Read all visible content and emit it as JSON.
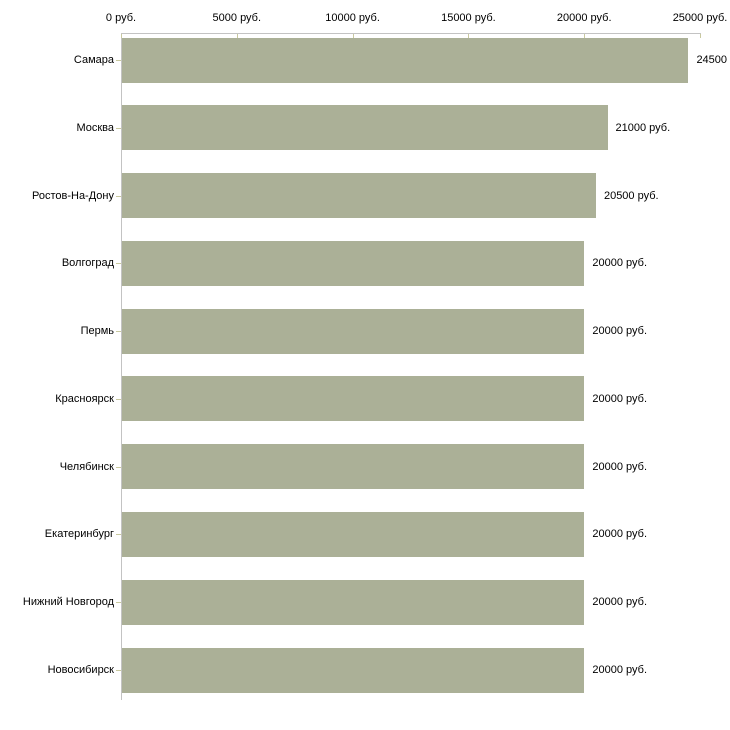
{
  "chart_data": {
    "type": "bar",
    "orientation": "horizontal",
    "title": "",
    "xlabel": "",
    "ylabel": "",
    "unit": "руб.",
    "grid": false,
    "legend": null,
    "categories": [
      "Самара",
      "Москва",
      "Ростов-На-Дону",
      "Волгоград",
      "Пермь",
      "Красноярск",
      "Челябинск",
      "Екатеринбург",
      "Нижний Новгород",
      "Новосибирск"
    ],
    "values": [
      24500,
      21000,
      20500,
      20000,
      20000,
      20000,
      20000,
      20000,
      20000,
      20000
    ],
    "value_labels": [
      "24500",
      "21000 руб.",
      "20500 руб.",
      "20000 руб.",
      "20000 руб.",
      "20000 руб.",
      "20000 руб.",
      "20000 руб.",
      "20000 руб.",
      "20000 руб."
    ],
    "xlim": [
      0,
      25000
    ],
    "x_ticks": [
      0,
      5000,
      10000,
      15000,
      20000,
      25000
    ],
    "x_tick_labels": [
      "0 руб.",
      "5000 руб.",
      "10000 руб.",
      "15000 руб.",
      "20000 руб.",
      "25000 руб."
    ],
    "colors": {
      "bar": "#abb097",
      "axis_line": "#c3c3c3",
      "tick_mark": "#c9c99f",
      "text": "#000000",
      "background": "#ffffff"
    }
  }
}
